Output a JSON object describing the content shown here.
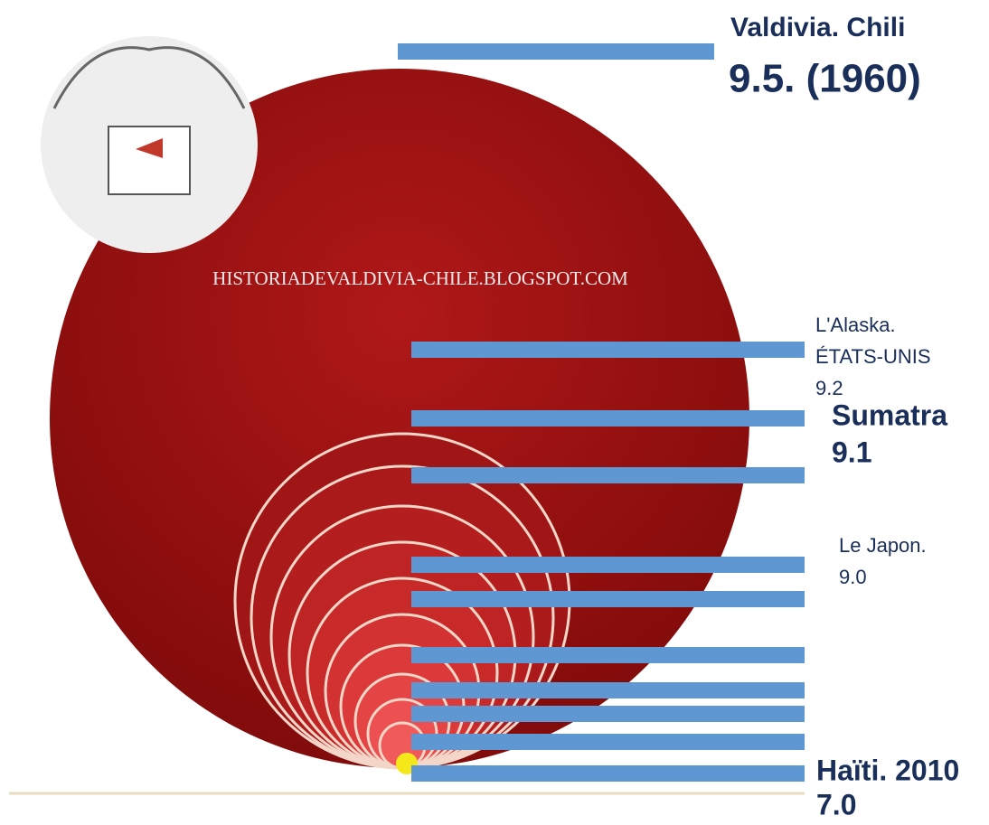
{
  "watermark": "HISTORIADEVALDIVIA-CHILE.BLOGSPOT.COM",
  "labels": [
    {
      "place": "Valdivia. Chili",
      "magnitude": "9.5. (1960)"
    },
    {
      "place": "L'Alaska.",
      "country": "ÉTATS-UNIS",
      "magnitude": "9.2"
    },
    {
      "place": "Sumatra",
      "magnitude": "9.1"
    },
    {
      "place": "Le Japon.",
      "magnitude": "9.0"
    },
    {
      "place": "Haïti. 2010",
      "magnitude": "7.0"
    }
  ]
}
